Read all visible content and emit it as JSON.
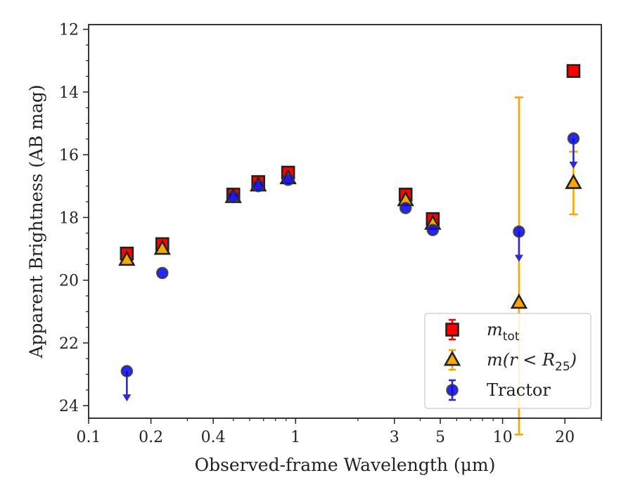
{
  "chart_data": {
    "type": "scatter",
    "xlabel": "Observed-frame Wavelength (μm)",
    "ylabel": "Apparent Brightness (AB mag)",
    "x_scale": "log",
    "xlim": [
      0.1,
      30
    ],
    "ylim": [
      24.4,
      11.85
    ],
    "y_inverted": true,
    "x_ticks": [
      0.1,
      0.2,
      0.4,
      1,
      3,
      5,
      10,
      20
    ],
    "x_tick_labels": [
      "0.1",
      "0.2",
      "0.4",
      "1",
      "3",
      "5",
      "10",
      "20"
    ],
    "y_ticks": [
      12,
      14,
      16,
      18,
      20,
      22,
      24
    ],
    "y_tick_labels": [
      "12",
      "14",
      "16",
      "18",
      "20",
      "22",
      "24"
    ],
    "grid": false,
    "legend_placement": "lower-right",
    "series": [
      {
        "name": "m_tot",
        "legend_main": "m",
        "legend_sub": "tot",
        "marker": "square",
        "color": "#ff0000",
        "edge_color": "#222222",
        "error_color": "#ff0000",
        "points": [
          {
            "x": 0.153,
            "y": 19.15,
            "err": 0.07
          },
          {
            "x": 0.227,
            "y": 18.85,
            "err": 0.07
          },
          {
            "x": 0.5,
            "y": 17.27,
            "err": 0.05
          },
          {
            "x": 0.66,
            "y": 16.87,
            "err": 0.05
          },
          {
            "x": 0.92,
            "y": 16.57,
            "err": 0.05
          },
          {
            "x": 3.4,
            "y": 17.27,
            "err": 0.05
          },
          {
            "x": 4.6,
            "y": 18.05,
            "err": 0.05
          },
          {
            "x": 22.0,
            "y": 13.33,
            "err": 0.05
          }
        ]
      },
      {
        "name": "m(r < R_25)",
        "legend_main": "m(r < R",
        "legend_sub": "25",
        "legend_tail": ")",
        "marker": "triangle",
        "color": "#ffa500",
        "edge_color": "#222222",
        "error_color": "#ffa500",
        "points": [
          {
            "x": 0.153,
            "y": 19.35,
            "err": 0.06
          },
          {
            "x": 0.227,
            "y": 19.0,
            "err": 0.06
          },
          {
            "x": 0.5,
            "y": 17.35,
            "err": 0.05
          },
          {
            "x": 0.66,
            "y": 16.98,
            "err": 0.05
          },
          {
            "x": 0.92,
            "y": 16.75,
            "err": 0.05
          },
          {
            "x": 3.4,
            "y": 17.45,
            "err": 0.05
          },
          {
            "x": 4.6,
            "y": 18.2,
            "err": 0.05
          },
          {
            "x": 12.0,
            "y": 20.72,
            "err_lo": 6.55,
            "err_hi": 4.2
          },
          {
            "x": 22.0,
            "y": 16.9,
            "err": 1.0
          }
        ]
      },
      {
        "name": "Tractor",
        "legend_main": "Tractor",
        "marker": "circle",
        "color": "#0000ff",
        "edge_color": "#333333",
        "error_color": "#2b2bdb",
        "points": [
          {
            "x": 0.153,
            "y": 22.9,
            "upper_limit": true
          },
          {
            "x": 0.227,
            "y": 19.77
          },
          {
            "x": 0.5,
            "y": 17.35
          },
          {
            "x": 0.66,
            "y": 17.0
          },
          {
            "x": 0.92,
            "y": 16.8
          },
          {
            "x": 3.4,
            "y": 17.7
          },
          {
            "x": 4.6,
            "y": 18.4
          },
          {
            "x": 12.0,
            "y": 18.45,
            "upper_limit": true
          },
          {
            "x": 22.0,
            "y": 15.48,
            "upper_limit": true
          }
        ]
      }
    ]
  }
}
